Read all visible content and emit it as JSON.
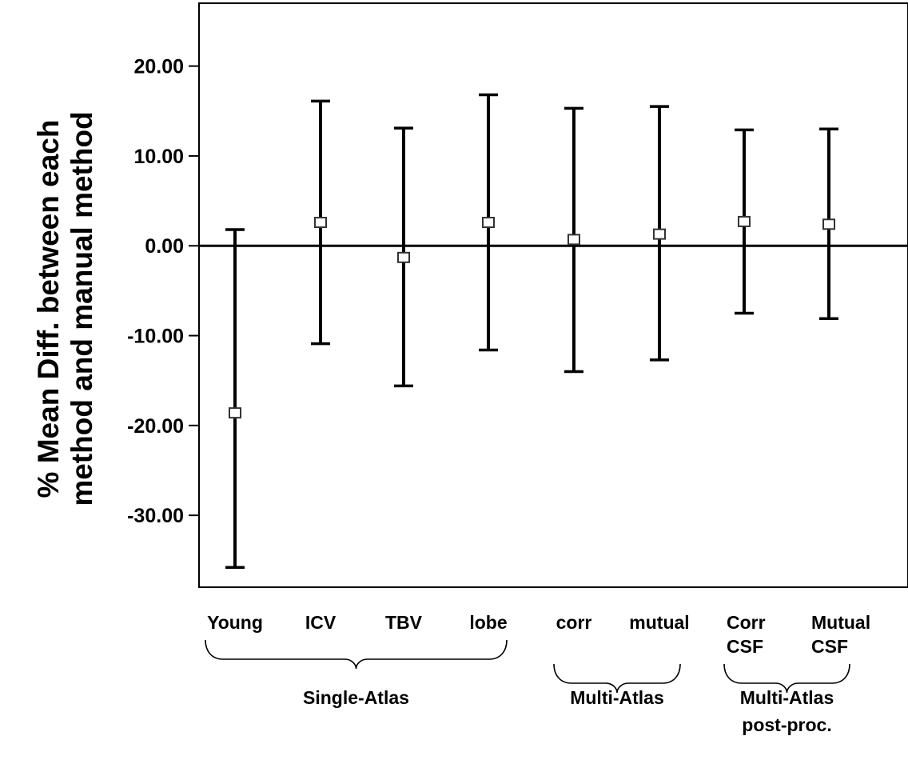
{
  "chart_data": {
    "type": "error-bar",
    "ylabel_lines": [
      "% Mean Diff. between each",
      "method  and manual method"
    ],
    "ylim": [
      -38,
      27
    ],
    "yticks": [
      20,
      10,
      0,
      -10,
      -20,
      -30
    ],
    "ytick_labels": [
      "20.00",
      "10.00",
      "0.00",
      "-10.00",
      "-20.00",
      "-30.00"
    ],
    "reference_line": 0,
    "categories": [
      {
        "lines": [
          "Young"
        ]
      },
      {
        "lines": [
          "ICV"
        ]
      },
      {
        "lines": [
          "TBV"
        ]
      },
      {
        "lines": [
          "lobe"
        ]
      },
      {
        "lines": [
          "corr"
        ]
      },
      {
        "lines": [
          "mutual"
        ]
      },
      {
        "lines": [
          "Corr",
          "CSF"
        ]
      },
      {
        "lines": [
          "Mutual",
          "CSF"
        ]
      }
    ],
    "series": [
      {
        "mean": [
          -18.6,
          2.6,
          -1.3,
          2.6,
          0.7,
          1.3,
          2.7,
          2.4
        ],
        "upper": [
          1.8,
          16.1,
          13.1,
          16.8,
          15.3,
          15.5,
          12.9,
          13.0
        ],
        "lower": [
          -35.8,
          -10.9,
          -15.6,
          -11.6,
          -14.0,
          -12.7,
          -7.5,
          -8.1
        ]
      }
    ],
    "groups": [
      {
        "lines": [
          "Single-Atlas"
        ],
        "first": 0,
        "last": 3
      },
      {
        "lines": [
          "Multi-Atlas"
        ],
        "first": 4,
        "last": 5
      },
      {
        "lines": [
          "Multi-Atlas",
          "post-proc."
        ],
        "first": 6,
        "last": 7
      }
    ],
    "colors": {
      "line": "#000000",
      "marker_fill": "#ffffff",
      "marker_stroke": "#333333",
      "background": "#ffffff"
    }
  }
}
